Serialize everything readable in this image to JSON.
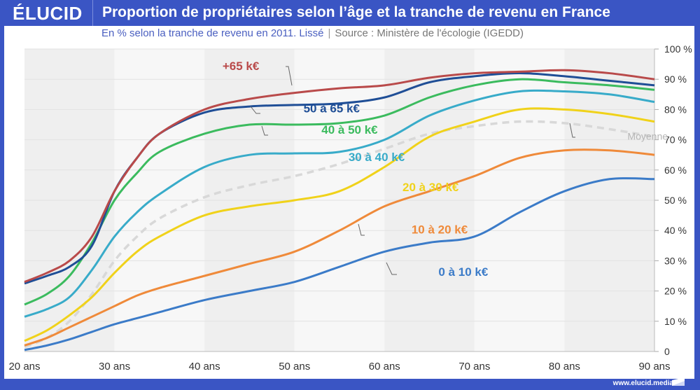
{
  "header": {
    "brand": "ÉLUCID",
    "title": "Proportion de propriétaires selon l’âge et la tranche de revenu en France"
  },
  "subtitle": {
    "main": "En % selon la tranche de revenu en 2011. Lissé",
    "separator": "|",
    "source": "Source : Ministère de l'écologie (IGEDD)"
  },
  "footer": {
    "url": "www.elucid.media"
  },
  "chart_data": {
    "type": "line",
    "title": "Proportion de propriétaires selon l’âge et la tranche de revenu en France",
    "subtitle": "En % selon la tranche de revenu en 2011. Lissé",
    "xlabel": "",
    "ylabel": "",
    "xlim": [
      20,
      90
    ],
    "ylim": [
      0,
      100
    ],
    "grid": true,
    "x_ticks": [
      20,
      30,
      40,
      50,
      60,
      70,
      80,
      90
    ],
    "x_tick_labels": [
      "20 ans",
      "30 ans",
      "40 ans",
      "50 ans",
      "60 ans",
      "70 ans",
      "80 ans",
      "90 ans"
    ],
    "y_ticks": [
      0,
      10,
      20,
      30,
      40,
      50,
      60,
      70,
      80,
      90,
      100
    ],
    "y_tick_labels": [
      "0",
      "10 %",
      "20 %",
      "30 %",
      "40 %",
      "50 %",
      "60 %",
      "70 %",
      "80 %",
      "90 %",
      "100 %"
    ],
    "y_axis_side": "right",
    "x": [
      20,
      22.5,
      25,
      27.5,
      30,
      32.5,
      35,
      40,
      45,
      50,
      55,
      60,
      65,
      70,
      75,
      80,
      85,
      90
    ],
    "series": [
      {
        "name": "+65 k€",
        "color": "#b94a4a",
        "dashed": false,
        "values": [
          23,
          26,
          30,
          38,
          53,
          64,
          72,
          80,
          83.5,
          85.5,
          87,
          88,
          90.5,
          92,
          92.5,
          93,
          92,
          90
        ],
        "label_pos": [
          42,
          93
        ]
      },
      {
        "name": "50 à 65 k€",
        "color": "#1f4e96",
        "dashed": false,
        "values": [
          22.5,
          25,
          28,
          35,
          53,
          64,
          72,
          79,
          81,
          81.5,
          82,
          84,
          89,
          91,
          92,
          91,
          89.5,
          88
        ],
        "label_pos": [
          51,
          79
        ]
      },
      {
        "name": "40 à 50 k€",
        "color": "#3bbb5e",
        "dashed": false,
        "values": [
          15.5,
          19,
          25,
          36,
          50,
          59,
          66,
          72,
          75,
          75,
          75.5,
          78,
          84,
          88,
          90,
          89,
          88,
          86.5
        ],
        "label_pos": [
          53,
          72
        ]
      },
      {
        "name": "30 à 40 k€",
        "color": "#38abc9",
        "dashed": false,
        "values": [
          11.5,
          14,
          18,
          27,
          38,
          46,
          52,
          61,
          65,
          65.5,
          66,
          70,
          78,
          83,
          86,
          86,
          85,
          82.5
        ],
        "label_pos": [
          56,
          63
        ]
      },
      {
        "name": "Moyenne",
        "color": "#d8d8d8",
        "dashed": true,
        "values": [
          1.5,
          4.5,
          10,
          19,
          30,
          38,
          44,
          51,
          55,
          58,
          62,
          67,
          72,
          74.5,
          76,
          75.5,
          73.5,
          71
        ],
        "label_pos": [
          87,
          70
        ]
      },
      {
        "name": "20 à 30 k€",
        "color": "#f0d21a",
        "dashed": false,
        "values": [
          3.5,
          7,
          12,
          18,
          26,
          33,
          38,
          45,
          48,
          50,
          53,
          61,
          71,
          76,
          80,
          80,
          78.5,
          76
        ],
        "label_pos": [
          62,
          53
        ]
      },
      {
        "name": "10 à 20 k€",
        "color": "#ef8a3a",
        "dashed": false,
        "values": [
          2,
          4.5,
          8,
          11.5,
          15,
          18.5,
          21,
          25,
          29,
          33,
          40,
          48,
          53,
          58,
          64,
          66.5,
          66.5,
          65
        ],
        "label_pos": [
          63,
          39
        ]
      },
      {
        "name": "0 à 10 k€",
        "color": "#3b7bc8",
        "dashed": false,
        "values": [
          0.5,
          2,
          4,
          6.5,
          9,
          11,
          13,
          17,
          20,
          23,
          28,
          33,
          36,
          38,
          46,
          53,
          57,
          57
        ],
        "label_pos": [
          66,
          25
        ]
      }
    ]
  }
}
